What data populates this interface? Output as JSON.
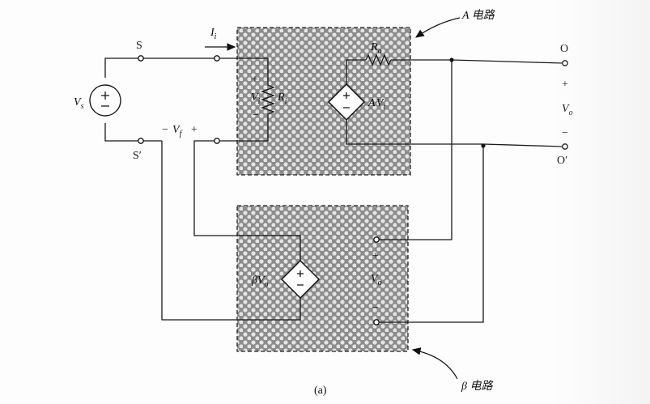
{
  "diagram": {
    "title_a": "A 电路",
    "title_b": "β 电路",
    "caption": "(a)",
    "source": {
      "symbol": "V",
      "sub": "s"
    },
    "terminals": {
      "s": "S",
      "s_prime": "S′",
      "o": "O",
      "o_prime": "O′"
    },
    "current": {
      "symbol": "I",
      "sub": "i"
    },
    "feedback_voltage": {
      "minus": "−",
      "symbol": "V",
      "sub": "f",
      "plus": "+"
    },
    "input_voltage": {
      "plus": "+",
      "symbol": "V",
      "sub": "i",
      "minus": "−"
    },
    "input_resistor": {
      "symbol": "R",
      "sub": "i"
    },
    "output_resistor": {
      "symbol": "R",
      "sub": "o"
    },
    "dependent_source_a": {
      "gain": "A",
      "symbol": "V",
      "sub": "i"
    },
    "dependent_source_b": {
      "gain": "β",
      "symbol": "V",
      "sub": "o"
    },
    "output_voltage": {
      "plus": "+",
      "symbol": "V",
      "sub": "o",
      "minus": "−"
    },
    "beta_input_voltage": {
      "plus": "+",
      "symbol": "V",
      "sub": "o",
      "minus": "−"
    }
  }
}
